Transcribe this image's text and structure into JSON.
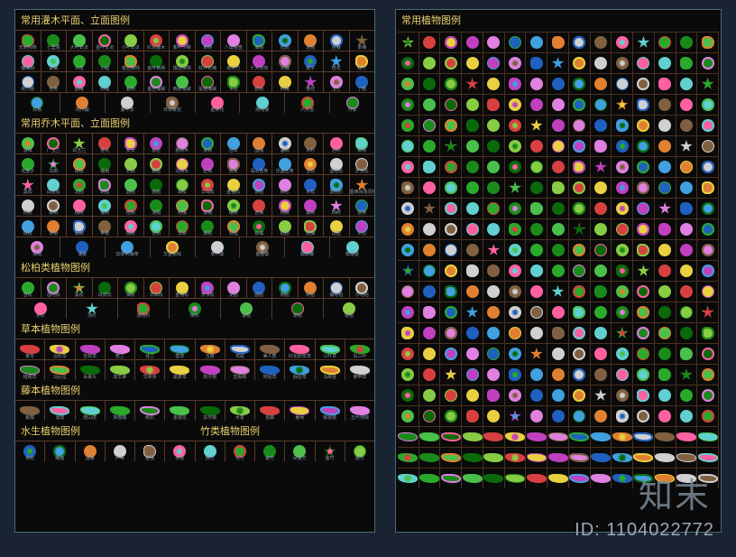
{
  "watermark": "知末",
  "id": "ID: 1104022772",
  "palette": {
    "bg": "#1a2332",
    "panel_bg": "#0a0a0a",
    "panel_border": "#4a6a7a",
    "grid_line": "#5a3a2a",
    "title": "#e8d070",
    "label": "#8a9aa8"
  },
  "symbol_colors": [
    "#2aaa2a",
    "#1a8a1a",
    "#4ac04a",
    "#0a6a0a",
    "#88cc44",
    "#d84040",
    "#e8d040",
    "#c040c0",
    "#e080e0",
    "#2060c0",
    "#40a0e0",
    "#e08030",
    "#d0d0d0",
    "#806040",
    "#ff60a0",
    "#60d0d0"
  ],
  "left_panel": {
    "sections": [
      {
        "title": "常用灌木平面、立面图例",
        "rows": [
          {
            "cols": 14,
            "labels": [
              "无刺构骨",
              "七里香",
              "大叶女贞",
              "金叶女贞",
              "小叶女贞",
              "红花継木",
              "紫叶小檗",
              "黄杨",
              "八角金盘",
              "海桐",
              "杜鹃",
              "连翘",
              "迎春",
              "茶梅"
            ]
          },
          {
            "cols": 14,
            "labels": [
              "珊瑚树",
              "紫薇",
              "木槿",
              "小蜡",
              "金边黄杨",
              "金叶黄杨",
              "银边黄杨",
              "红叶石楠",
              "南天竹",
              "十大功劳",
              "火棘",
              "栀子",
              "桂花",
              "棕竹"
            ]
          },
          {
            "cols": 14,
            "labels": [
              "夹竹桃",
              "含笑",
              "腊梅",
              "石榴",
              "紫荆",
              "垂丝海棠",
              "西府海棠",
              "贴梗海棠",
              "木瓜",
              "碧桃",
              "红梅",
              "樱花",
              "玉兰",
              "丁香"
            ]
          },
          {
            "cols": 8,
            "labels": [
              "红枫",
              "鸡爪槭",
              "紫叶李",
              "日本樱花",
              "金钟花",
              "绣线菊",
              "六月雪",
              "月季"
            ]
          }
        ]
      },
      {
        "title": "常用乔木平面、立面图例",
        "rows": [
          {
            "cols": 14,
            "labels": [
              "香樟",
              "广玉兰",
              "白玉兰",
              "桂花",
              "女贞",
              "银杏",
              "悬铃木",
              "栾树",
              "合欢",
              "国槐",
              "垂柳",
              "水杉",
              "池杉",
              "枫杨"
            ]
          },
          {
            "cols": 14,
            "labels": [
              "无患子",
              "乌桕",
              "榉树",
              "榆树",
              "朴树",
              "枫香",
              "马褂木",
              "杜英",
              "含笑",
              "深山含笑",
              "乐昌含笑",
              "雪松",
              "湿地松",
              "罗汉松"
            ]
          },
          {
            "cols": 14,
            "labels": [
              "黑松",
              "白皮松",
              "龙柏",
              "刺柏",
              "圆柏",
              "侧柏",
              "油松",
              "华山松",
              "金钱松",
              "香柏",
              "柳杉",
              "水松",
              "落羽杉",
              "墨西哥落羽杉"
            ]
          },
          {
            "cols": 14,
            "labels": [
              "杨树",
              "柳树",
              "槐树",
              "榆树",
              "梧桐",
              "泡桐",
              "刺槐",
              "臭椿",
              "椿树",
              "苦楝",
              "构树",
              "桑树",
              "柿树",
              "板栗"
            ]
          },
          {
            "cols": 14,
            "labels": [
              "核桃",
              "枣树",
              "梨树",
              "苹果",
              "桃树",
              "杏树",
              "李树",
              "樱桃",
              "石榴",
              "柑橘",
              "枇杷",
              "杨梅",
              "山楂",
              "木瓜"
            ]
          },
          {
            "cols": 8,
            "labels": [
              "棕榈",
              "蒲葵",
              "加拿利海枣",
              "华盛顿棕",
              "老人葵",
              "鱼尾葵",
              "假槟榔",
              "散尾葵"
            ]
          }
        ]
      },
      {
        "title": "松柏类植物图例",
        "rows": [
          {
            "cols": 14,
            "labels": [
              "雪松",
              "湿地松",
              "黑松",
              "白皮松",
              "油松",
              "华山松",
              "金钱松",
              "罗汉松",
              "龙柏",
              "圆柏",
              "侧柏",
              "刺柏",
              "铺地柏",
              "沙地柏"
            ]
          },
          {
            "cols": 7,
            "labels": [
              "水杉",
              "池杉",
              "落羽杉",
              "柳杉",
              "香柏",
              "翠柏",
              "桧柏"
            ]
          }
        ]
      },
      {
        "title": "草本植物图例",
        "rows": [
          {
            "cols": 12,
            "labels": [
              "麦冬",
              "沿阶草",
              "吉祥草",
              "葱兰",
              "韭兰",
              "萱草",
              "玉簪",
              "鸢尾",
              "美人蕉",
              "红花酢浆草",
              "三叶草",
              "白三叶"
            ]
          },
          {
            "cols": 12,
            "labels": [
              "结缕草",
              "马尼拉",
              "百慕大",
              "高羊茅",
              "早熟禾",
              "黑麦草",
              "狗牙根",
              "剪股颖",
              "地毯草",
              "假俭草",
              "马蹄金",
              "佛甲草"
            ]
          }
        ]
      },
      {
        "title": "藤本植物图例",
        "rows": [
          {
            "cols": 12,
            "labels": [
              "紫藤",
              "凌霄",
              "爬山虎",
              "常春藤",
              "络石",
              "金银花",
              "扶芳藤",
              "木香",
              "蔷薇",
              "葡萄",
              "猕猴桃",
              "五叶地锦"
            ]
          }
        ]
      },
      {
        "title": "水生植物图例",
        "title2": "竹类植物图例",
        "split": 6,
        "rows": [
          {
            "cols": 12,
            "labels": [
              "荷花",
              "睡莲",
              "菖蒲",
              "芦苇",
              "香蒲",
              "水葱",
              "刚竹",
              "毛竹",
              "紫竹",
              "凤尾竹",
              "箬竹",
              "慈竹"
            ]
          }
        ]
      }
    ]
  },
  "right_panel": {
    "title": "常用植物图例",
    "rows": 22,
    "cols": 15
  }
}
